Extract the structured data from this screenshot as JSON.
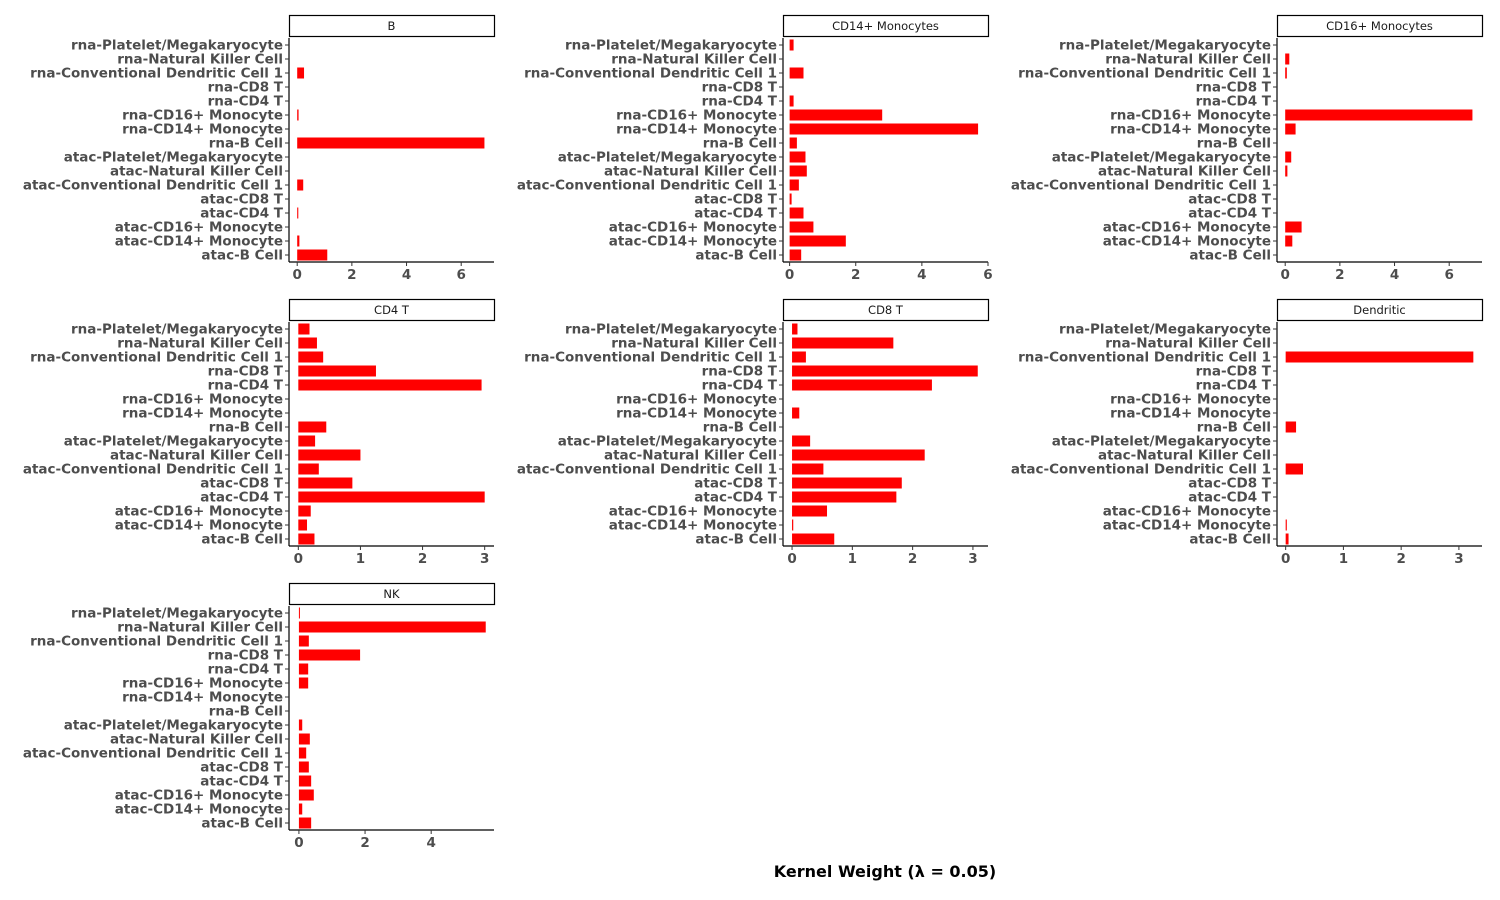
{
  "chart_data": {
    "type": "bar",
    "orientation": "horizontal",
    "facet": true,
    "xlabel": "Kernel Weight (λ = 0.05)",
    "ylabel": "",
    "bar_color": "#ff0000",
    "categories": [
      "rna-Platelet/Megakaryocyte",
      "rna-Natural Killer Cell",
      "rna-Conventional Dendritic Cell 1",
      "rna-CD8 T",
      "rna-CD4 T",
      "rna-CD16+ Monocyte",
      "rna-CD14+ Monocyte",
      "rna-B Cell",
      "atac-Platelet/Megakaryocyte",
      "atac-Natural Killer Cell",
      "atac-Conventional Dendritic Cell 1",
      "atac-CD8 T",
      "atac-CD4 T",
      "atac-CD16+ Monocyte",
      "atac-CD14+ Monocyte",
      "atac-B Cell"
    ],
    "panels": [
      {
        "title": "B",
        "xlim": [
          -0.3,
          7.2
        ],
        "ticks": [
          0,
          2,
          4,
          6
        ],
        "values": [
          0,
          0,
          0.25,
          0,
          0,
          0.05,
          0,
          6.85,
          0,
          0,
          0.22,
          0,
          0.04,
          0,
          0.08,
          1.1
        ]
      },
      {
        "title": "CD14+ Monocytes",
        "xlim": [
          -0.2,
          6.0
        ],
        "ticks": [
          0,
          2,
          4,
          6
        ],
        "values": [
          0.12,
          0,
          0.42,
          0,
          0.12,
          2.8,
          5.7,
          0.22,
          0.48,
          0.52,
          0.28,
          0.06,
          0.42,
          0.72,
          1.7,
          0.35
        ]
      },
      {
        "title": "CD16+ Monocytes",
        "xlim": [
          -0.3,
          7.2
        ],
        "ticks": [
          0,
          2,
          4,
          6
        ],
        "values": [
          0,
          0.15,
          0.06,
          0,
          0,
          6.85,
          0.38,
          0,
          0.22,
          0.08,
          0,
          0,
          0,
          0.6,
          0.26,
          0
        ]
      },
      {
        "title": "CD4 T",
        "xlim": [
          -0.15,
          3.15
        ],
        "ticks": [
          0,
          1,
          2,
          3
        ],
        "values": [
          0.18,
          0.3,
          0.4,
          1.25,
          2.95,
          0,
          0,
          0.45,
          0.27,
          1.0,
          0.33,
          0.87,
          3.0,
          0.2,
          0.14,
          0.26
        ]
      },
      {
        "title": "CD8 T",
        "xlim": [
          -0.15,
          3.25
        ],
        "ticks": [
          0,
          1,
          2,
          3
        ],
        "values": [
          0.09,
          1.68,
          0.23,
          3.08,
          2.32,
          0,
          0.12,
          0,
          0.3,
          2.2,
          0.52,
          1.82,
          1.73,
          0.58,
          0.02,
          0.7
        ]
      },
      {
        "title": "Dendritic",
        "xlim": [
          -0.15,
          3.4
        ],
        "ticks": [
          0,
          1,
          2,
          3
        ],
        "values": [
          0,
          0,
          3.25,
          0,
          0,
          0,
          0,
          0.18,
          0,
          0,
          0.3,
          0,
          0,
          0,
          0.02,
          0.05
        ]
      },
      {
        "title": "NK",
        "xlim": [
          -0.3,
          5.9
        ],
        "ticks": [
          0,
          2,
          4
        ],
        "values": [
          0.03,
          5.65,
          0.3,
          1.85,
          0.28,
          0.28,
          0,
          0,
          0.1,
          0.33,
          0.22,
          0.3,
          0.37,
          0.45,
          0.1,
          0.37
        ]
      }
    ]
  }
}
